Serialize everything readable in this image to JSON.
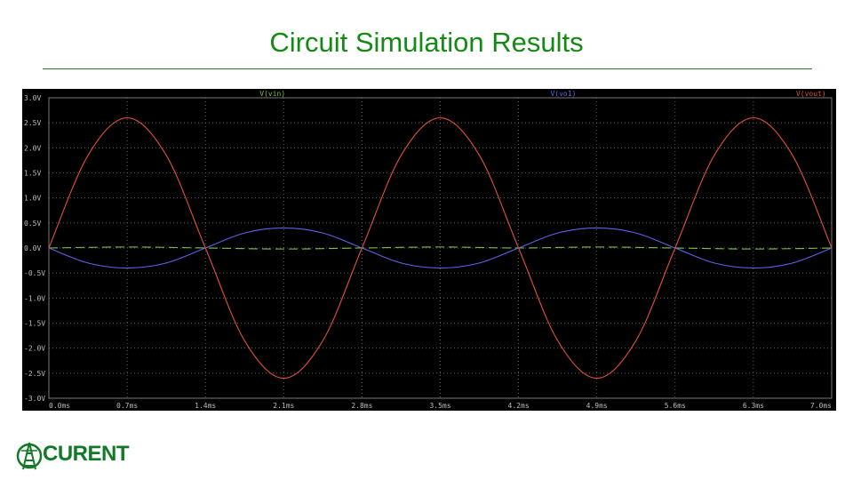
{
  "slide": {
    "title": "Circuit Simulation Results"
  },
  "logo": {
    "text": "CURENT",
    "color": "#127a27"
  },
  "chart_data": {
    "type": "line",
    "title": "",
    "xlabel": "",
    "ylabel": "",
    "xlim": [
      0.0,
      7.0
    ],
    "ylim": [
      -3.0,
      3.0
    ],
    "x_unit": "ms",
    "y_unit": "V",
    "grid": true,
    "background": "#000000",
    "x_ticks": [
      "0.0ms",
      "0.7ms",
      "1.4ms",
      "2.1ms",
      "2.8ms",
      "3.5ms",
      "4.2ms",
      "4.9ms",
      "5.6ms",
      "6.3ms",
      "7.0ms"
    ],
    "y_ticks": [
      "3.0V",
      "2.5V",
      "2.0V",
      "1.5V",
      "1.0V",
      "0.5V",
      "0.0V",
      "-0.5V",
      "-1.0V",
      "-1.5V",
      "-2.0V",
      "-2.5V",
      "-3.0V"
    ],
    "legend_entries": [
      "V(vin)",
      "V(vo1)",
      "V(vout)"
    ],
    "series": [
      {
        "name": "V(vin)",
        "color": "#7cc247",
        "style": "dashed",
        "x": [
          0.0,
          0.7,
          1.4,
          2.1,
          2.8,
          3.5,
          4.2,
          4.9,
          5.6,
          6.3,
          7.0
        ],
        "y": [
          0.0,
          0.02,
          0.0,
          -0.02,
          0.0,
          0.02,
          0.0,
          0.02,
          0.0,
          -0.02,
          0.0
        ]
      },
      {
        "name": "V(vo1)",
        "color": "#5a64e6",
        "x": [
          0.0,
          0.35,
          0.7,
          1.05,
          1.4,
          1.75,
          2.1,
          2.45,
          2.8,
          3.15,
          3.5,
          3.85,
          4.2,
          4.55,
          4.9,
          5.25,
          5.6,
          5.95,
          6.3,
          6.65,
          7.0
        ],
        "y": [
          0.0,
          -0.3,
          -0.4,
          -0.3,
          0.0,
          0.3,
          0.4,
          0.3,
          0.0,
          -0.3,
          -0.4,
          -0.3,
          0.0,
          0.3,
          0.4,
          0.3,
          0.0,
          -0.3,
          -0.4,
          -0.3,
          0.0
        ]
      },
      {
        "name": "V(vout)",
        "color": "#e0503a",
        "x": [
          0.0,
          0.35,
          0.7,
          1.05,
          1.4,
          1.75,
          2.1,
          2.45,
          2.8,
          3.15,
          3.5,
          3.85,
          4.2,
          4.55,
          4.9,
          5.25,
          5.6,
          5.95,
          6.3,
          6.65,
          7.0
        ],
        "y": [
          0.0,
          1.85,
          2.6,
          1.85,
          0.0,
          -1.85,
          -2.6,
          -1.85,
          0.0,
          1.85,
          2.6,
          1.85,
          0.0,
          -1.85,
          -2.6,
          -1.85,
          0.0,
          1.85,
          2.6,
          1.85,
          0.0
        ]
      }
    ]
  }
}
